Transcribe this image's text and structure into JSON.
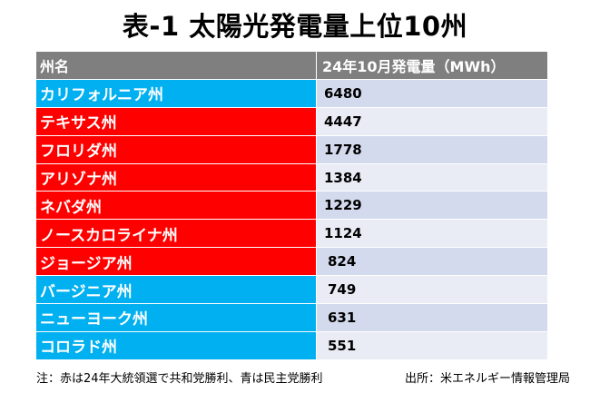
{
  "title": "表-1 太陽光発電量上位10州",
  "table": {
    "headers": [
      "州名",
      "24年10月発電量（MWh）"
    ],
    "rows": [
      {
        "state": "カリフォルニア州",
        "value": "6480",
        "party_color": "#00b0f0"
      },
      {
        "state": "テキサス州",
        "value": "4447",
        "party_color": "#ff0000"
      },
      {
        "state": "フロリダ州",
        "value": "1778",
        "party_color": "#ff0000"
      },
      {
        "state": "アリゾナ州",
        "value": "1384",
        "party_color": "#ff0000"
      },
      {
        "state": "ネバダ州",
        "value": "1229",
        "party_color": "#ff0000"
      },
      {
        "state": "ノースカロライナ州",
        "value": "1124",
        "party_color": "#ff0000"
      },
      {
        "state": "ジョージア州",
        "value": "824",
        "party_color": "#ff0000"
      },
      {
        "state": "バージニア州",
        "value": "749",
        "party_color": "#00b0f0"
      },
      {
        "state": "ニューヨーク州",
        "value": "631",
        "party_color": "#00b0f0"
      },
      {
        "state": "コロラド州",
        "value": "551",
        "party_color": "#00b0f0"
      }
    ]
  },
  "footer": {
    "note": "注：赤は24年大統領選で共和党勝利、青は民主党勝利",
    "source": "出所：米エネルギー情報管理局"
  }
}
